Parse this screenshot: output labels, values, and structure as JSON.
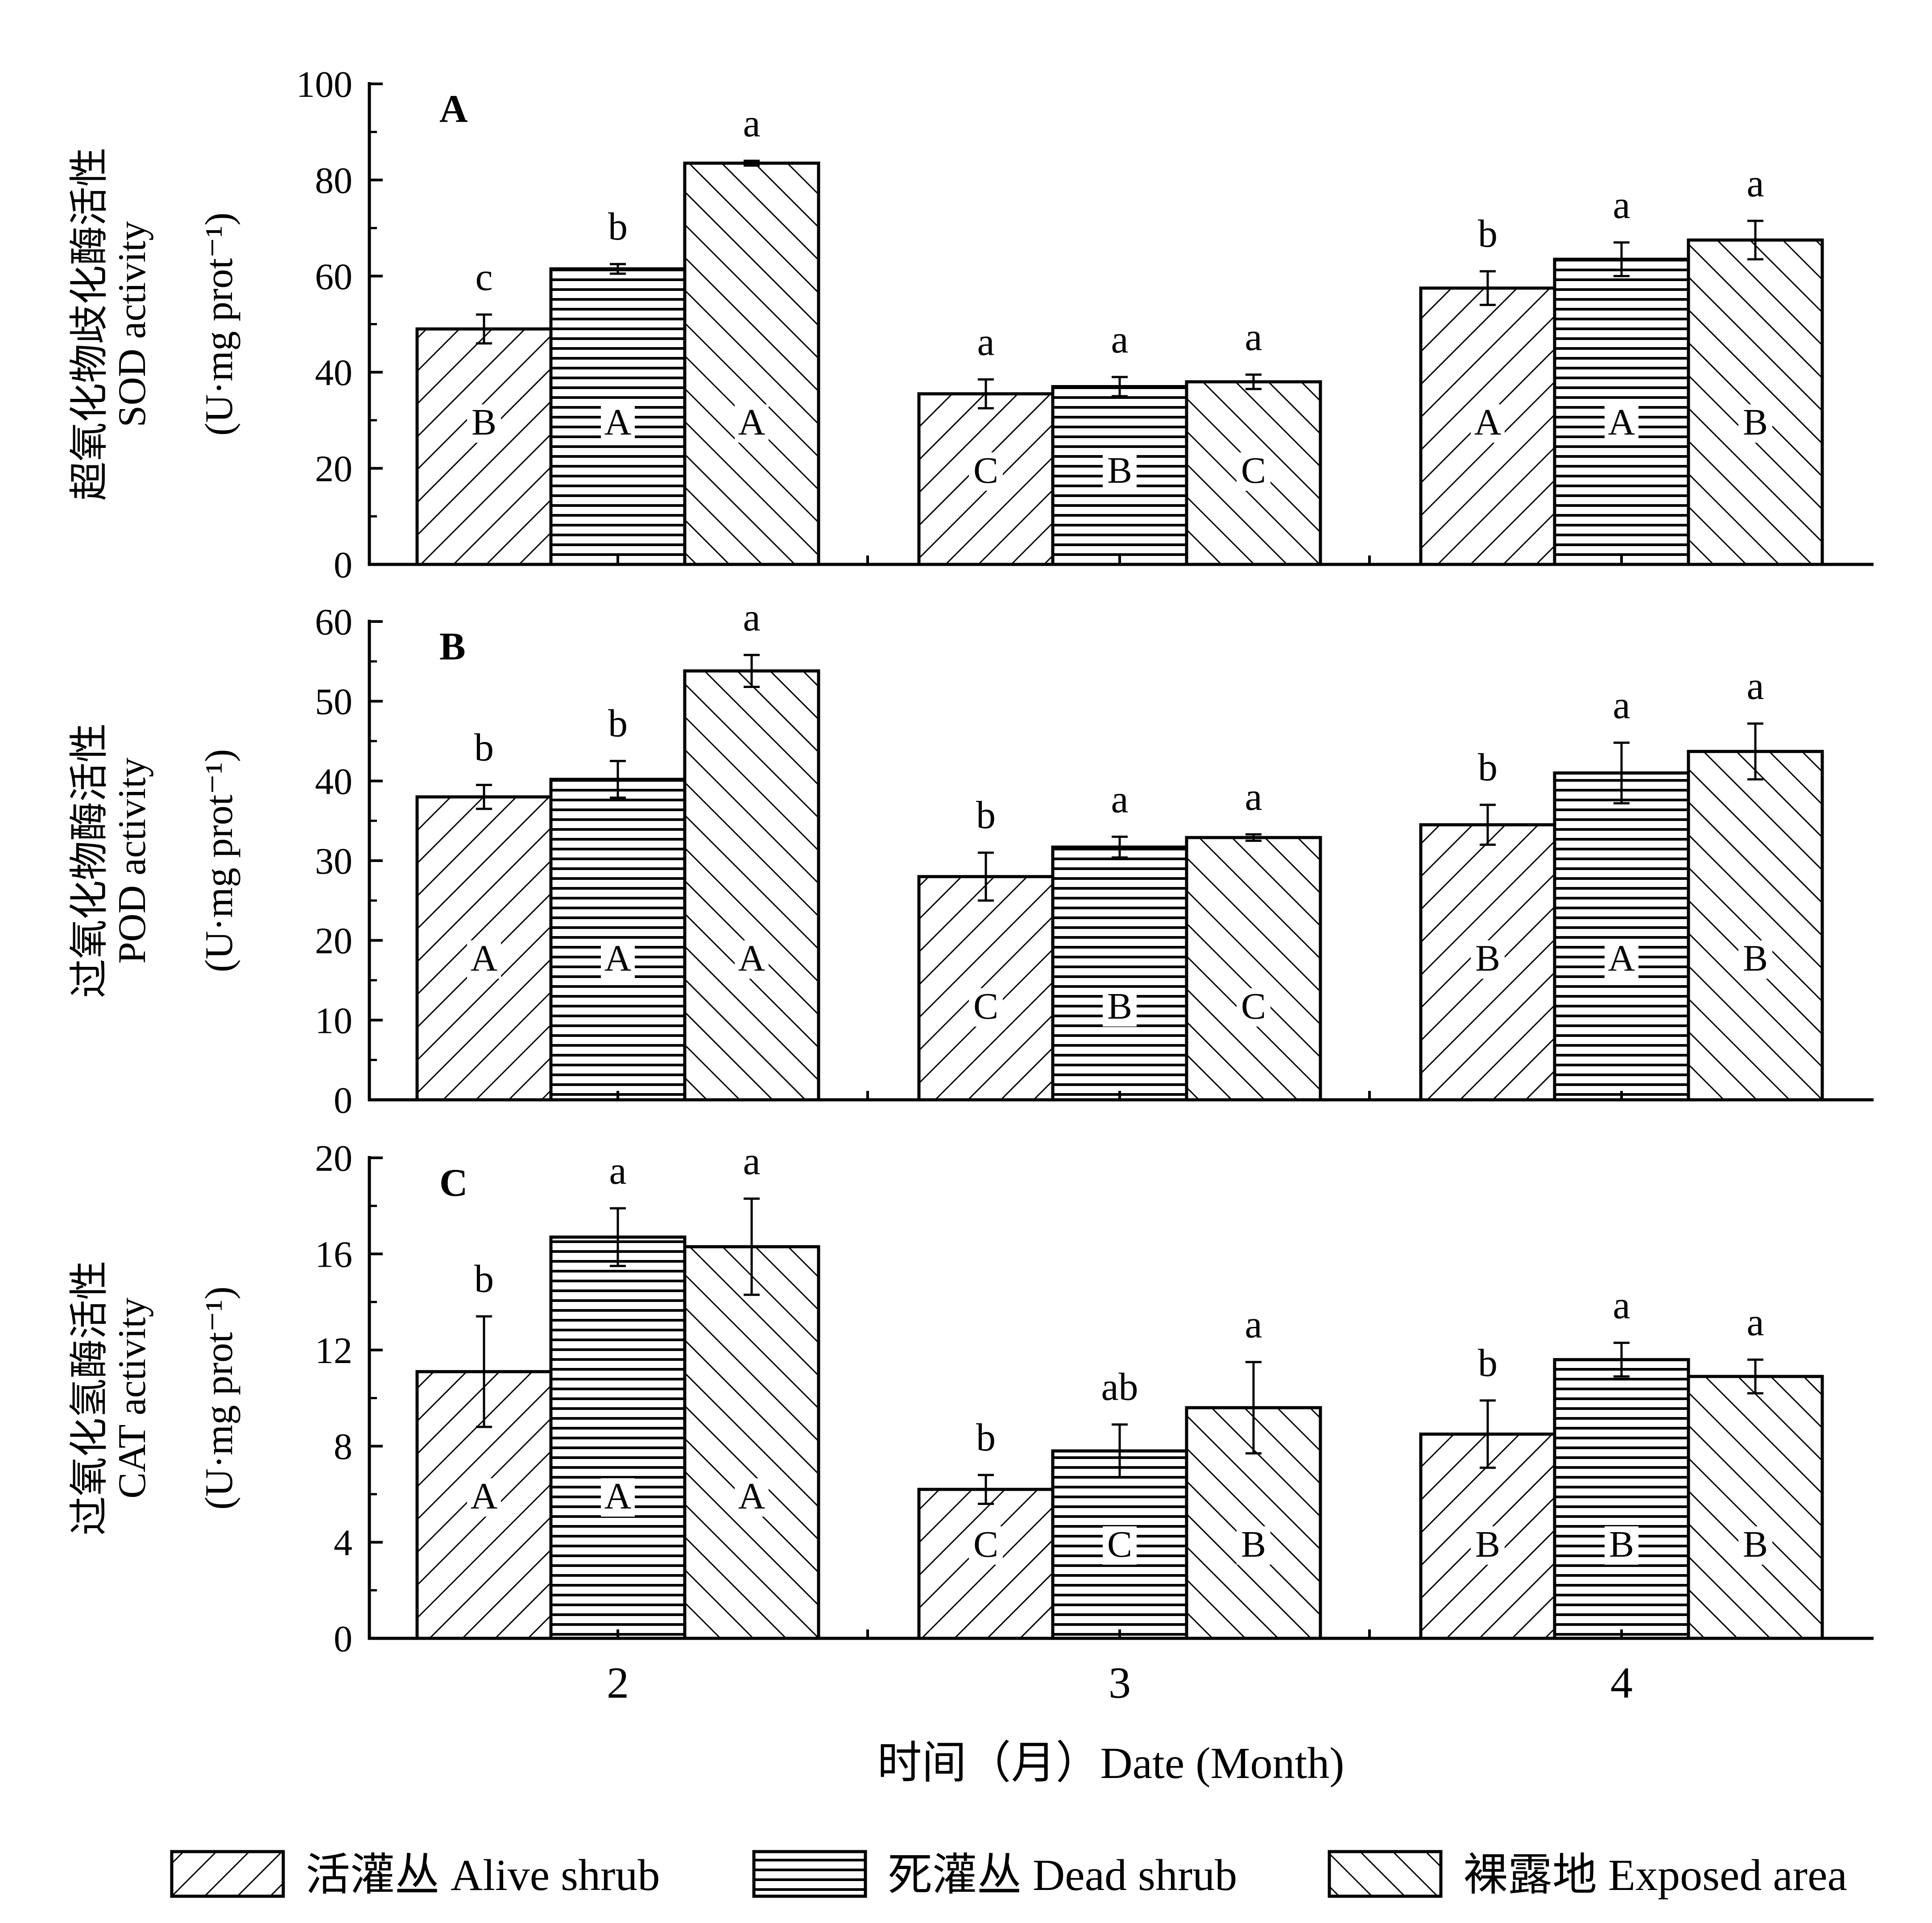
{
  "chart_data": {
    "type": "bar",
    "categories": [
      "2",
      "3",
      "4"
    ],
    "xlabel": "时间（月）Date (Month)",
    "legend": [
      {
        "label": "活灌丛 Alive shrub",
        "pattern": "diagonal-forward"
      },
      {
        "label": "死灌丛 Dead shrub",
        "pattern": "horizontal"
      },
      {
        "label": "裸露地 Exposed area",
        "pattern": "diagonal-back"
      }
    ],
    "legend_placement": "bottom",
    "panels": [
      {
        "letter": "A",
        "ylabel": [
          "超氧化物歧化酶活性",
          "SOD activity",
          "(U·mg prot⁻¹)"
        ],
        "ylim": [
          0,
          100
        ],
        "yticks": [
          0,
          20,
          40,
          60,
          80,
          100
        ],
        "series": [
          {
            "name": "活灌丛 Alive shrub",
            "values": [
              49,
              35.5,
              57.5
            ],
            "errors": [
              3,
              3,
              3.5
            ],
            "sig_lower": [
              "c",
              "a",
              "b"
            ],
            "sig_upper": [
              "B",
              "C",
              "A"
            ]
          },
          {
            "name": "死灌丛 Dead shrub",
            "values": [
              61.5,
              37,
              63.5
            ],
            "errors": [
              1,
              2,
              3.5
            ],
            "sig_lower": [
              "b",
              "a",
              "a"
            ],
            "sig_upper": [
              "A",
              "B",
              "A"
            ]
          },
          {
            "name": "裸露地 Exposed area",
            "values": [
              83.5,
              38,
              67.5
            ],
            "errors": [
              0.5,
              1.5,
              4
            ],
            "sig_lower": [
              "a",
              "a",
              "a"
            ],
            "sig_upper": [
              "A",
              "C",
              "B"
            ]
          }
        ]
      },
      {
        "letter": "B",
        "ylabel": [
          "过氧化物酶活性",
          "POD activity",
          "(U·mg prot⁻¹)"
        ],
        "ylim": [
          0,
          60
        ],
        "yticks": [
          0,
          10,
          20,
          30,
          40,
          50,
          60
        ],
        "series": [
          {
            "name": "活灌丛 Alive shrub",
            "values": [
              38,
              28,
              34.5
            ],
            "errors": [
              1.5,
              3,
              2.5
            ],
            "sig_lower": [
              "b",
              "b",
              "b"
            ],
            "sig_upper": [
              "A",
              "C",
              "B"
            ]
          },
          {
            "name": "死灌丛 Dead shrub",
            "values": [
              40.2,
              31.7,
              41
            ],
            "errors": [
              2.3,
              1.3,
              3.8
            ],
            "sig_lower": [
              "b",
              "a",
              "a"
            ],
            "sig_upper": [
              "A",
              "B",
              "A"
            ]
          },
          {
            "name": "裸露地 Exposed area",
            "values": [
              53.8,
              32.9,
              43.7
            ],
            "errors": [
              2,
              0.4,
              3.5
            ],
            "sig_lower": [
              "a",
              "a",
              "a"
            ],
            "sig_upper": [
              "A",
              "C",
              "B"
            ]
          }
        ]
      },
      {
        "letter": "C",
        "ylabel": [
          "过氧化氢酶活性",
          "CAT activity",
          "(U·mg prot⁻¹)"
        ],
        "ylim": [
          0,
          20
        ],
        "yticks": [
          0,
          4,
          8,
          12,
          16,
          20
        ],
        "series": [
          {
            "name": "活灌丛 Alive shrub",
            "values": [
              11.1,
              6.2,
              8.5
            ],
            "errors": [
              2.3,
              0.6,
              1.4
            ],
            "sig_lower": [
              "b",
              "b",
              "b"
            ],
            "sig_upper": [
              "A",
              "C",
              "B"
            ]
          },
          {
            "name": "死灌丛 Dead shrub",
            "values": [
              16.7,
              7.8,
              11.6
            ],
            "errors": [
              1.2,
              1.1,
              0.7
            ],
            "sig_lower": [
              "a",
              "ab",
              "a"
            ],
            "sig_upper": [
              "A",
              "C",
              "B"
            ]
          },
          {
            "name": "裸露地 Exposed area",
            "values": [
              16.3,
              9.6,
              10.9
            ],
            "errors": [
              2,
              1.9,
              0.7
            ],
            "sig_lower": [
              "a",
              "a",
              "a"
            ],
            "sig_upper": [
              "A",
              "B",
              "B"
            ]
          }
        ]
      }
    ]
  }
}
